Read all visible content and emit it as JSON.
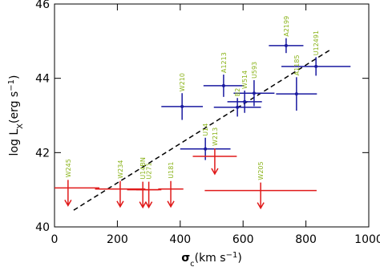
{
  "chart_data": {
    "type": "scatter",
    "xlabel": [
      "σ",
      "c",
      "(km s",
      "−1",
      ")"
    ],
    "ylabel": [
      "log L",
      "X",
      "(erg s",
      "−1",
      ")"
    ],
    "xlim": [
      0,
      1000
    ],
    "ylim": [
      40,
      46
    ],
    "xticks": [
      0,
      200,
      400,
      600,
      800,
      1000
    ],
    "yticks": [
      40,
      42,
      44,
      46
    ],
    "label_color": "#8ab31a",
    "detections": {
      "color": "#1a1aa0",
      "labels": [
        "W210",
        "A1213",
        "B2",
        "W514",
        "U593",
        "U14",
        "A1185",
        "A2199",
        "U12491"
      ],
      "x": [
        406,
        538,
        582,
        605,
        635,
        480,
        770,
        737,
        832
      ],
      "y": [
        43.24,
        43.8,
        43.22,
        43.37,
        43.6,
        42.1,
        43.58,
        44.88,
        44.32
      ],
      "xerr": [
        66,
        64,
        75,
        55,
        65,
        80,
        65,
        55,
        110
      ],
      "yerr": [
        0.36,
        0.3,
        0.25,
        0.3,
        0.35,
        0.3,
        0.45,
        0.2,
        0.25
      ]
    },
    "upper_limits": {
      "color": "#e01a1a",
      "labels": [
        "W245",
        "W234",
        "U14BN",
        "U271",
        "U181",
        "W213",
        "W205"
      ],
      "x": [
        43,
        209,
        281,
        300,
        370,
        510,
        656
      ],
      "y": [
        41.05,
        41.02,
        41.0,
        41.0,
        41.02,
        41.9,
        40.98
      ],
      "xerr": [
        100,
        80,
        50,
        40,
        40,
        70,
        178
      ]
    },
    "fit": {
      "color": "#000000",
      "x": [
        61,
        878
      ],
      "y": [
        40.45,
        44.77
      ]
    }
  }
}
